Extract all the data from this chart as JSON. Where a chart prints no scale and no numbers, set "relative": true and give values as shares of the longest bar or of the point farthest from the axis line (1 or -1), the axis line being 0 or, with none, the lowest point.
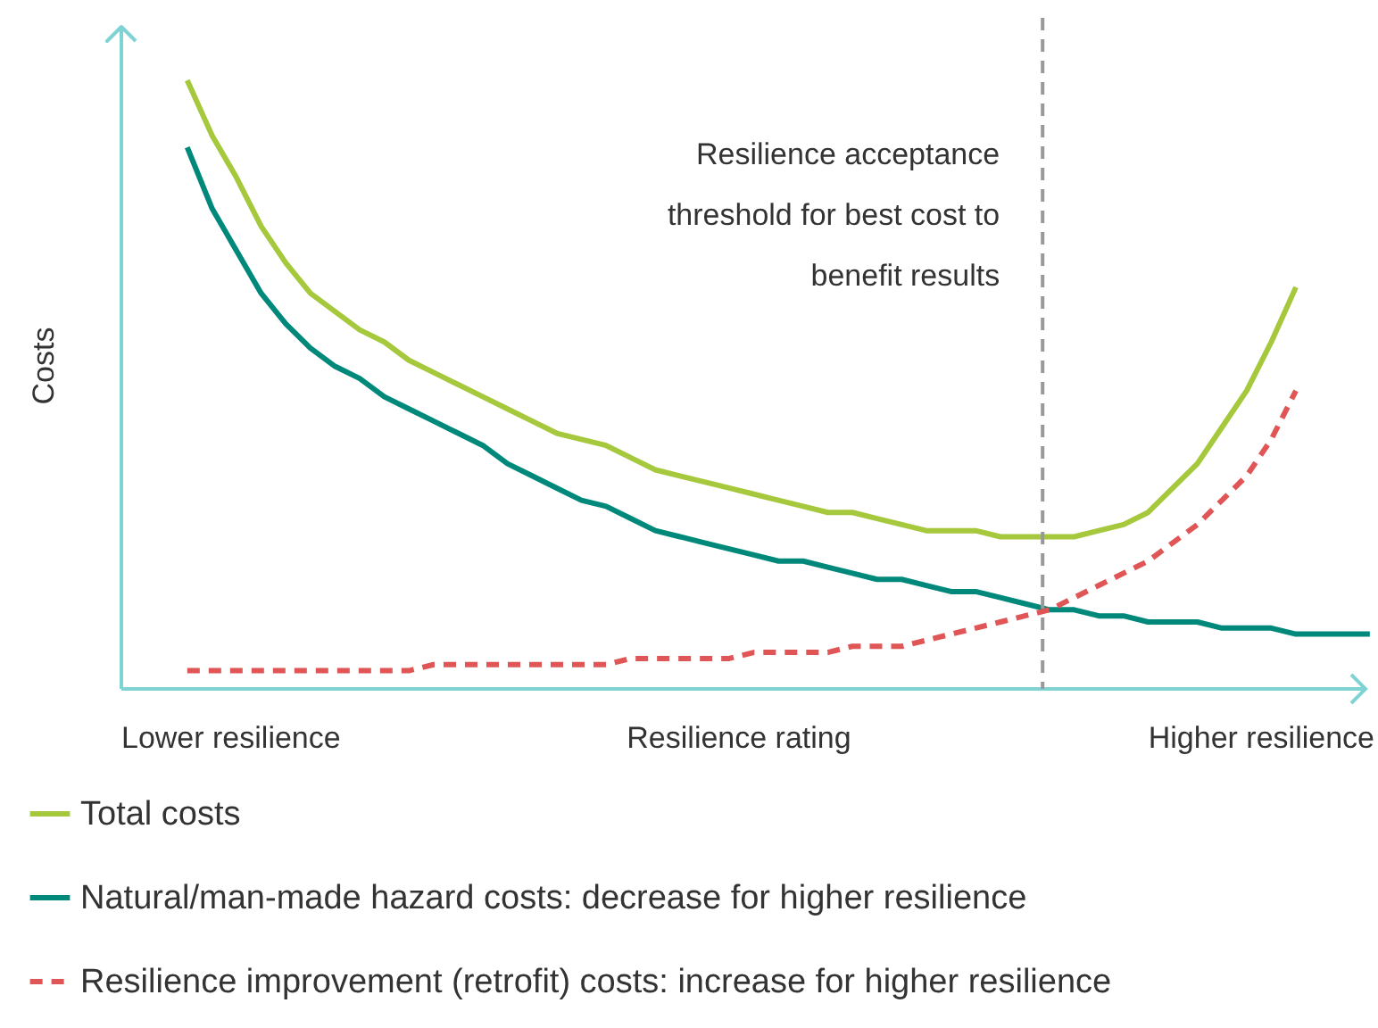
{
  "chart_data": {
    "type": "line",
    "relative": true,
    "xlabel": "Resilience rating",
    "ylabel": "Costs",
    "categories": [
      null,
      null,
      null,
      null,
      null,
      null,
      null,
      null,
      null,
      null,
      null,
      null,
      null,
      null,
      null,
      null,
      null,
      null,
      null,
      null,
      null,
      null,
      null,
      null,
      null,
      null,
      null,
      null,
      null,
      null,
      null,
      null,
      null,
      null,
      null,
      null,
      null,
      null,
      null,
      null,
      null,
      null,
      null,
      null,
      null,
      null,
      null,
      null,
      null
    ],
    "series": [
      {
        "name": "Total costs",
        "color": "#a5c83c",
        "line_style": "solid",
        "values": [
          1.0,
          0.91,
          0.84,
          0.76,
          0.7,
          0.65,
          0.62,
          0.59,
          0.57,
          0.54,
          0.52,
          0.5,
          0.48,
          0.46,
          0.44,
          0.42,
          0.41,
          0.4,
          0.38,
          0.36,
          0.35,
          0.34,
          0.33,
          0.32,
          0.31,
          0.3,
          0.29,
          0.29,
          0.28,
          0.27,
          0.26,
          0.26,
          0.26,
          0.25,
          0.25,
          0.25,
          0.25,
          0.26,
          0.27,
          0.29,
          0.33,
          0.37,
          0.43,
          0.49,
          0.57,
          0.66,
          null,
          null,
          null
        ]
      },
      {
        "name": "Natural/man-made hazard costs: decrease for higher resilience",
        "color": "#00897b",
        "line_style": "solid",
        "values": [
          0.89,
          0.79,
          0.72,
          0.65,
          0.6,
          0.56,
          0.53,
          0.51,
          0.48,
          0.46,
          0.44,
          0.42,
          0.4,
          0.37,
          0.35,
          0.33,
          0.31,
          0.3,
          0.28,
          0.26,
          0.25,
          0.24,
          0.23,
          0.22,
          0.21,
          0.21,
          0.2,
          0.19,
          0.18,
          0.18,
          0.17,
          0.16,
          0.16,
          0.15,
          0.14,
          0.13,
          0.13,
          0.12,
          0.12,
          0.11,
          0.11,
          0.11,
          0.1,
          0.1,
          0.1,
          0.09,
          0.09,
          0.09,
          0.09
        ]
      },
      {
        "name": "Resilience improvement (retrofit) costs: increase for higher resilience",
        "color": "#e05555",
        "line_style": "dashed",
        "values": [
          0.03,
          0.03,
          0.03,
          0.03,
          0.03,
          0.03,
          0.03,
          0.03,
          0.03,
          0.03,
          0.04,
          0.04,
          0.04,
          0.04,
          0.04,
          0.04,
          0.04,
          0.04,
          0.05,
          0.05,
          0.05,
          0.05,
          0.05,
          0.06,
          0.06,
          0.06,
          0.06,
          0.07,
          0.07,
          0.07,
          0.08,
          0.09,
          0.1,
          0.11,
          0.12,
          0.13,
          0.15,
          0.17,
          0.19,
          0.21,
          0.24,
          0.27,
          0.31,
          0.35,
          0.41,
          0.49,
          null,
          null,
          null
        ]
      }
    ],
    "annotations": [
      "Lower resilience",
      "Higher resilience",
      "Resilience acceptance threshold for best cost to benefit results"
    ],
    "legend": "bottom",
    "grid": false
  }
}
